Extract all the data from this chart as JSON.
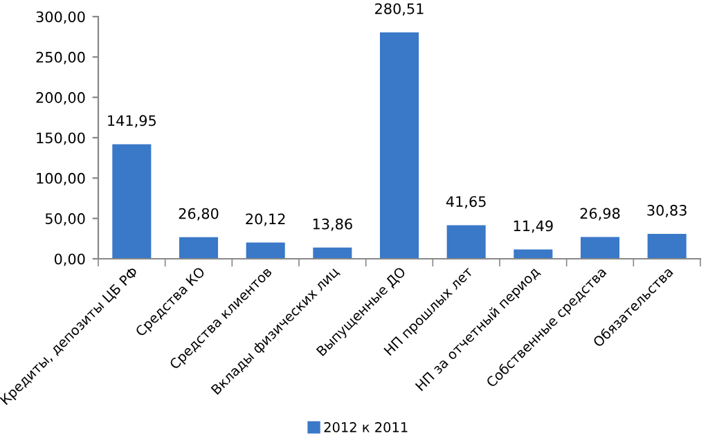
{
  "chart_data": {
    "type": "bar",
    "categories": [
      "Кредиты, депозиты ЦБ РФ",
      "Средства КО",
      "Средства клиентов",
      "Вклады физических лиц",
      "Выпущенные ДО",
      "НП прошлых лет",
      "НП за отчетный период",
      "Собственные средства",
      "Обязательства"
    ],
    "series": [
      {
        "name": "2012 к 2011",
        "color": "#3a78c8",
        "values": [
          141.95,
          26.8,
          20.12,
          13.86,
          280.51,
          41.65,
          11.49,
          26.98,
          30.83
        ],
        "value_labels": [
          "141,95",
          "26,80",
          "20,12",
          "13,86",
          "280,51",
          "41,65",
          "11,49",
          "26,98",
          "30,83"
        ]
      }
    ],
    "ylim": [
      0,
      300
    ],
    "yticks": [
      {
        "value": 0,
        "label": "0,00"
      },
      {
        "value": 50,
        "label": "50,00"
      },
      {
        "value": 100,
        "label": "100,00"
      },
      {
        "value": 150,
        "label": "150,00"
      },
      {
        "value": 200,
        "label": "200,00"
      },
      {
        "value": 250,
        "label": "250,00"
      },
      {
        "value": 300,
        "label": "300,00"
      }
    ],
    "grid": false,
    "legend": "bottom"
  }
}
